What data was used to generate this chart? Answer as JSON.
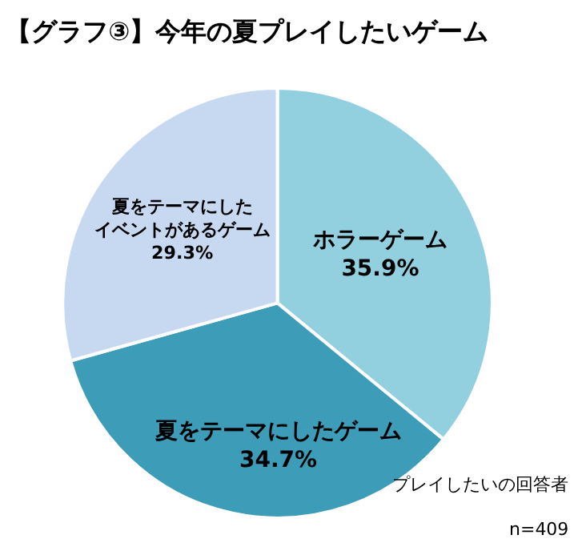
{
  "chart_data": {
    "type": "pie",
    "title": "【グラフ③】今年の夏プレイしたいゲーム",
    "categories": [
      "ホラーゲーム",
      "夏をテーマにしたゲーム",
      "夏をテーマにしたイベントがあるゲーム"
    ],
    "values": [
      35.9,
      34.7,
      29.3
    ],
    "value_labels": [
      "35.9%",
      "34.7%",
      "29.3%"
    ],
    "colors": [
      "#93d0df",
      "#3d9cb8",
      "#c6d9f0"
    ],
    "legend": false,
    "annotations": [
      "プレイしたいの回答者",
      "n=409"
    ]
  }
}
